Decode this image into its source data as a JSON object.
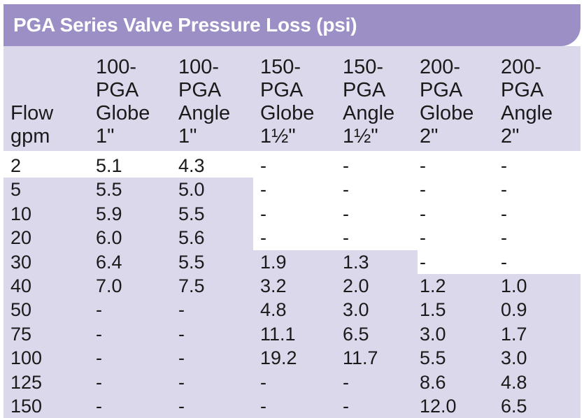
{
  "title": "PGA Series Valve Pressure Loss (psi)",
  "columns": [
    "Flow\ngpm",
    "100-\nPGA\nGlobe\n1\"",
    "100-\nPGA\nAngle\n1\"",
    "150-\nPGA\nGlobe\n1½\"",
    "150-\nPGA\nAngle\n1½\"",
    "200-\nPGA\nGlobe\n2\"",
    "200-\nPGA\nAngle\n2\""
  ],
  "rows": [
    [
      "2",
      "5.1",
      "4.3",
      "-",
      "-",
      "-",
      "-"
    ],
    [
      "5",
      "5.5",
      "5.0",
      "-",
      "-",
      "-",
      "-"
    ],
    [
      "10",
      "5.9",
      "5.5",
      "-",
      "-",
      "-",
      "-"
    ],
    [
      "20",
      "6.0",
      "5.6",
      "-",
      "-",
      "-",
      "-"
    ],
    [
      "30",
      "6.4",
      "5.5",
      "1.9",
      "1.3",
      "-",
      "-"
    ],
    [
      "40",
      "7.0",
      "7.5",
      "3.2",
      "2.0",
      "1.2",
      "1.0"
    ],
    [
      "50",
      "-",
      "-",
      "4.8",
      "3.0",
      "1.5",
      "0.9"
    ],
    [
      "75",
      "-",
      "-",
      "11.1",
      "6.5",
      "3.0",
      "1.7"
    ],
    [
      "100",
      "-",
      "-",
      "19.2",
      "11.7",
      "5.5",
      "3.0"
    ],
    [
      "125",
      "-",
      "-",
      "-",
      "-",
      "8.6",
      "4.8"
    ],
    [
      "150",
      "-",
      "-",
      "-",
      "-",
      "12.0",
      "6.5"
    ]
  ],
  "colors": {
    "title_bg": "#9c8fc6",
    "band_bg": "#dcd8ec",
    "text": "#1a1a1a",
    "title_text": "#ffffff"
  }
}
